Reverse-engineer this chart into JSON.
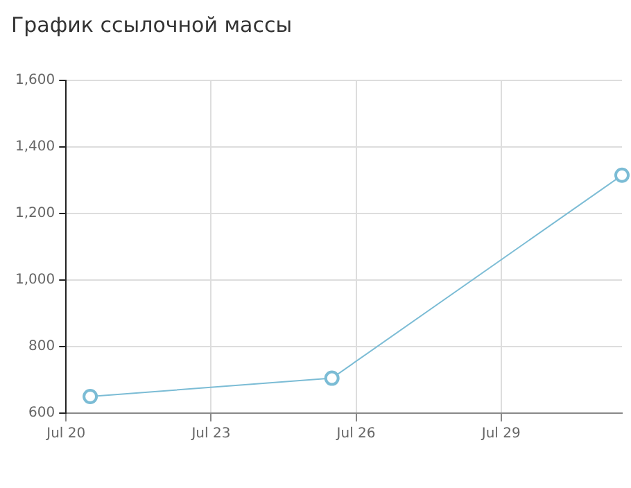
{
  "chart_data": {
    "type": "line",
    "title": "График ссылочной массы",
    "x": [
      "--07-20T12:00",
      "--07-25T12:00",
      "--07-31T12:00"
    ],
    "series": [
      {
        "color": "#7bbcd5",
        "values": [
          650,
          705,
          1315
        ]
      }
    ],
    "xlim": [
      "--07-20",
      "--07-31T12:00"
    ],
    "xticks": [
      {
        "value": "--07-20",
        "label": "Jul 20"
      },
      {
        "value": "--07-23",
        "label": "Jul 23"
      },
      {
        "value": "--07-26",
        "label": "Jul 26"
      },
      {
        "value": "--07-29",
        "label": "Jul 29"
      }
    ],
    "ylim": [
      600,
      1600
    ],
    "yticks": [
      {
        "value": 600,
        "label": "600"
      },
      {
        "value": 800,
        "label": "800"
      },
      {
        "value": 1000,
        "label": "1,000"
      },
      {
        "value": 1200,
        "label": "1,200"
      },
      {
        "value": 1400,
        "label": "1,400"
      },
      {
        "value": 1600,
        "label": "1,600"
      }
    ],
    "grid": true,
    "legend": false,
    "marker": "circle",
    "line_style": "solid"
  }
}
